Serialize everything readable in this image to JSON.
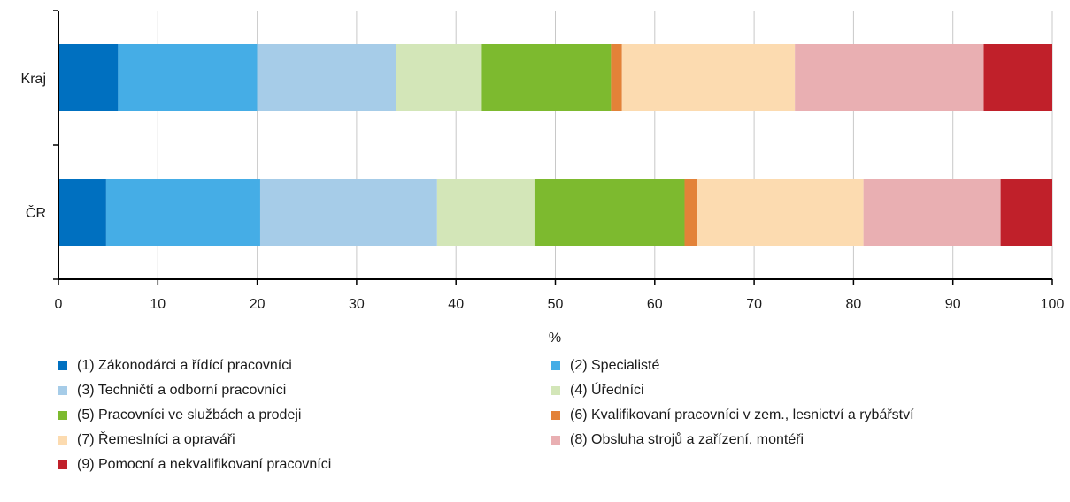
{
  "chart_data": {
    "type": "bar",
    "orientation": "horizontal",
    "stacked": true,
    "title": "",
    "xlabel": "%",
    "ylabel": "",
    "xlim": [
      0,
      100
    ],
    "x_ticks": [
      "0",
      "10",
      "20",
      "30",
      "40",
      "50",
      "60",
      "70",
      "80",
      "90",
      "100"
    ],
    "grid": "vertical",
    "legend_position": "bottom",
    "categories": [
      "Kraj",
      "ČR"
    ],
    "series": [
      {
        "name": "(1) Zákonodárci a řídící pracovníci",
        "color": "#0070C0",
        "values": [
          6.0,
          4.8
        ]
      },
      {
        "name": "(2) Specialisté",
        "color": "#45ADE6",
        "values": [
          14.0,
          15.5
        ]
      },
      {
        "name": "(3) Techničtí a odborní pracovníci",
        "color": "#A6CCE8",
        "values": [
          14.0,
          17.8
        ]
      },
      {
        "name": "(4) Úředníci",
        "color": "#D3E6B8",
        "values": [
          8.6,
          9.8
        ]
      },
      {
        "name": "(5) Pracovníci ve službách a prodeji",
        "color": "#7DBA2F",
        "values": [
          13.0,
          15.1
        ]
      },
      {
        "name": "(6) Kvalifikovaní pracovníci v zem., lesnictví a rybářství",
        "color": "#E38238",
        "values": [
          1.1,
          1.3
        ]
      },
      {
        "name": "(7) Řemeslníci a opraváři",
        "color": "#FCDBB0",
        "values": [
          17.4,
          16.7
        ]
      },
      {
        "name": "(8) Obsluha strojů a zařízení, montéři",
        "color": "#E9AFB2",
        "values": [
          19.0,
          13.8
        ]
      },
      {
        "name": "(9) Pomocní a nekvalifikovaní pracovníci",
        "color": "#C0202A",
        "values": [
          6.9,
          5.2
        ]
      }
    ]
  }
}
